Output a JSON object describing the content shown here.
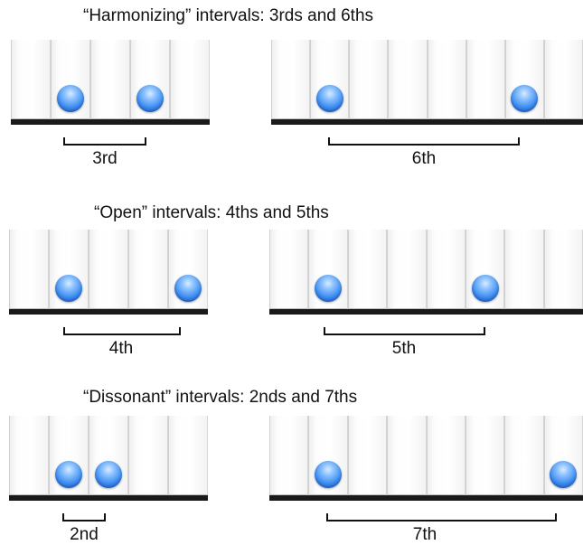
{
  "sections": [
    {
      "heading": "“Harmonizing” intervals: 3rds and 6ths",
      "examples": [
        {
          "label": "3rd"
        },
        {
          "label": "6th"
        }
      ]
    },
    {
      "heading": "“Open” intervals: 4ths and 5ths",
      "examples": [
        {
          "label": "4th"
        },
        {
          "label": "5th"
        }
      ]
    },
    {
      "heading": "“Dissonant” intervals: 2nds and 7ths",
      "examples": [
        {
          "label": "2nd"
        },
        {
          "label": "7th"
        }
      ]
    }
  ],
  "colors": {
    "ball": "#3f8ef0",
    "base": "#1a1a1a",
    "key": "#ffffff"
  }
}
